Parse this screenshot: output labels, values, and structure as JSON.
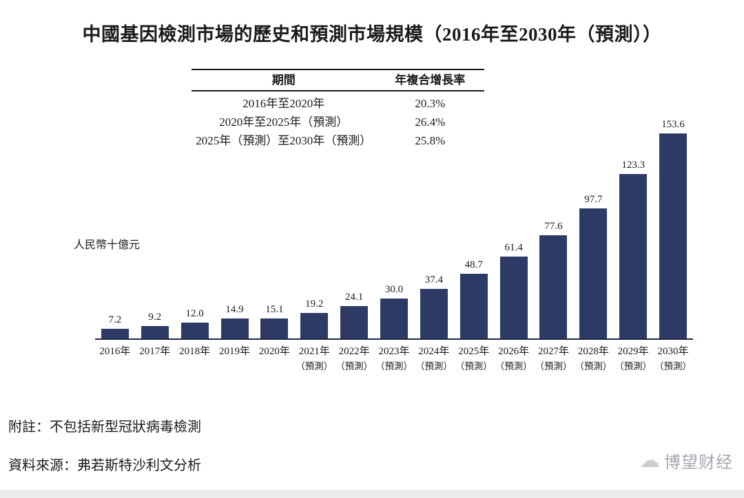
{
  "title": "中國基因檢測市場的歷史和預測市場規模（2016年至2030年（預測））",
  "cagr_table": {
    "headers": [
      "期間",
      "年複合增長率"
    ],
    "rows": [
      {
        "period": "2016年至2020年",
        "cagr": "20.3%"
      },
      {
        "period": "2020年至2025年（預測）",
        "cagr": "26.4%"
      },
      {
        "period": "2025年（預測）至2030年（預測）",
        "cagr": "25.8%"
      }
    ]
  },
  "chart_data": {
    "type": "bar",
    "title": "中國基因檢測市場的歷史和預測市場規模（2016年至2030年（預測））",
    "ylabel": "人民幣十億元",
    "ylim": [
      0,
      160
    ],
    "bar_color": "#2d3a66",
    "categories": [
      "2016年",
      "2017年",
      "2018年",
      "2019年",
      "2020年",
      "2021年",
      "2022年",
      "2023年",
      "2024年",
      "2025年",
      "2026年",
      "2027年",
      "2028年",
      "2029年",
      "2030年"
    ],
    "forecast_label": "（預測）",
    "forecast_from_index": 5,
    "values": [
      7.2,
      9.2,
      12.0,
      14.9,
      15.1,
      19.2,
      24.1,
      30.0,
      37.4,
      48.7,
      61.4,
      77.6,
      97.7,
      123.3,
      153.6
    ],
    "legend_position": "none",
    "grid": false
  },
  "note": "附註：不包括新型冠狀病毒檢測",
  "source": "資料來源：弗若斯特沙利文分析",
  "watermark": {
    "text": "博望财经"
  }
}
